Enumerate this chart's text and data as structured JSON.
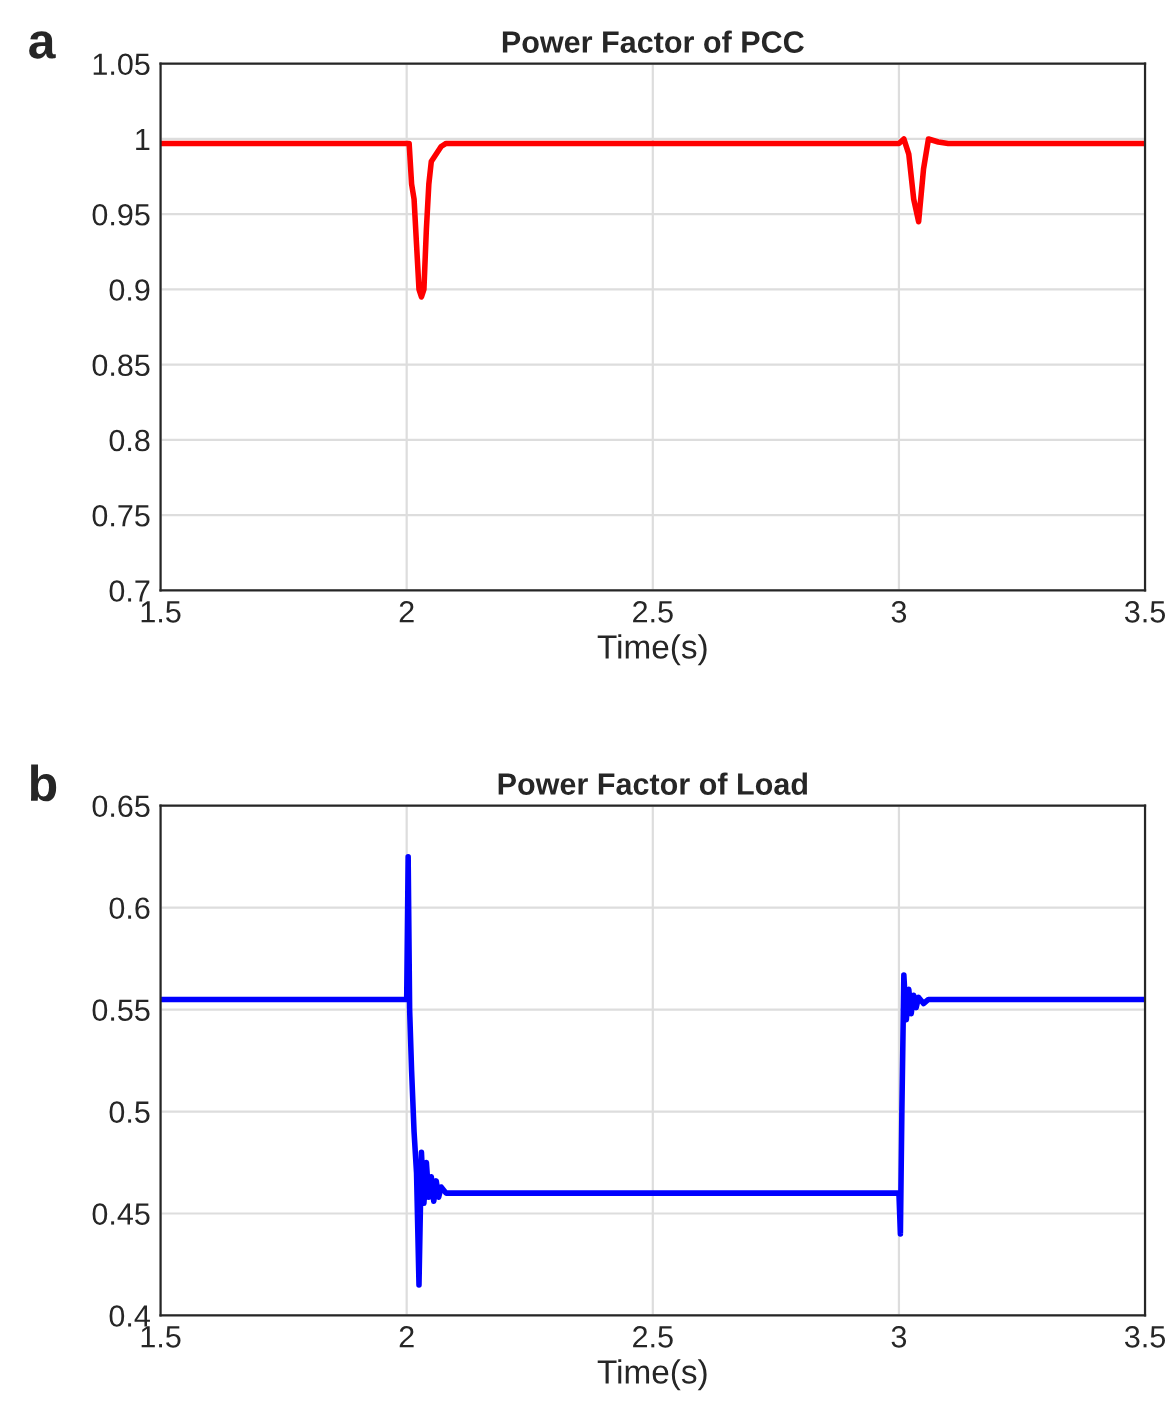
{
  "chart_data": [
    {
      "type": "line",
      "title": "Power Factor of PCC",
      "xlabel": "Time(s)",
      "annotations": [
        "a"
      ],
      "x": [
        1.5,
        2.0,
        2.005,
        2.01,
        2.015,
        2.02,
        2.025,
        2.03,
        2.035,
        2.04,
        2.045,
        2.05,
        2.06,
        2.07,
        2.08,
        2.5,
        3.0,
        3.01,
        3.02,
        3.03,
        3.04,
        3.05,
        3.06,
        3.08,
        3.1,
        3.5
      ],
      "series": [
        {
          "color": "#ff0000",
          "values": [
            0.997,
            0.997,
            0.997,
            0.97,
            0.96,
            0.93,
            0.9,
            0.895,
            0.9,
            0.94,
            0.97,
            0.985,
            0.99,
            0.995,
            0.997,
            0.997,
            0.997,
            1.0,
            0.99,
            0.96,
            0.945,
            0.98,
            1.0,
            0.998,
            0.997,
            0.997
          ]
        }
      ],
      "xlim": [
        1.5,
        3.5
      ],
      "xticks": [
        1.5,
        2,
        2.5,
        3,
        3.5
      ],
      "ylim": [
        0.7,
        1.05
      ],
      "yticks": [
        0.7,
        0.75,
        0.8,
        0.85,
        0.9,
        0.95,
        1,
        1.05
      ],
      "grid": true,
      "line_style": "solid"
    },
    {
      "type": "line",
      "title": "Power Factor of Load",
      "xlabel": "Time(s)",
      "annotations": [
        "b"
      ],
      "x": [
        1.5,
        2.0,
        2.003,
        2.006,
        2.01,
        2.015,
        2.02,
        2.025,
        2.03,
        2.035,
        2.04,
        2.045,
        2.05,
        2.055,
        2.06,
        2.065,
        2.07,
        2.08,
        2.1,
        2.5,
        3.0,
        3.003,
        3.006,
        3.01,
        3.015,
        3.02,
        3.025,
        3.03,
        3.035,
        3.04,
        3.05,
        3.06,
        3.08,
        3.5
      ],
      "series": [
        {
          "color": "#0000ff",
          "values": [
            0.555,
            0.555,
            0.625,
            0.55,
            0.52,
            0.49,
            0.47,
            0.415,
            0.48,
            0.455,
            0.475,
            0.458,
            0.468,
            0.456,
            0.466,
            0.458,
            0.463,
            0.46,
            0.46,
            0.46,
            0.46,
            0.44,
            0.5,
            0.567,
            0.545,
            0.56,
            0.548,
            0.557,
            0.551,
            0.556,
            0.553,
            0.555,
            0.555,
            0.555
          ]
        }
      ],
      "xlim": [
        1.5,
        3.5
      ],
      "xticks": [
        1.5,
        2,
        2.5,
        3,
        3.5
      ],
      "ylim": [
        0.4,
        0.65
      ],
      "yticks": [
        0.4,
        0.45,
        0.5,
        0.55,
        0.6,
        0.65
      ],
      "grid": true,
      "line_style": "solid"
    }
  ]
}
